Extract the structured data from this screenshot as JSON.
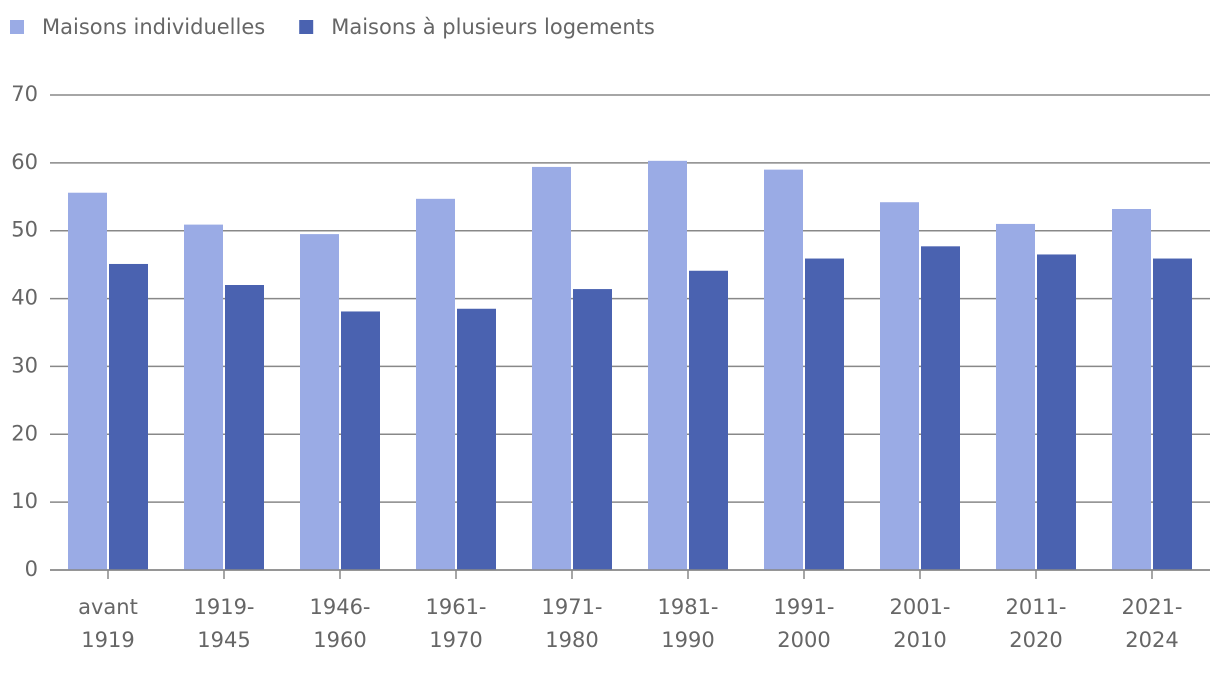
{
  "chart_data": {
    "type": "bar",
    "categories": [
      "avant\n1919",
      "1919-\n1945",
      "1946-\n1960",
      "1961-\n1970",
      "1971-\n1980",
      "1981-\n1990",
      "1991-\n2000",
      "2001-\n2010",
      "2011-\n2020",
      "2021-\n2024"
    ],
    "series": [
      {
        "name": "Maisons individuelles",
        "color": "#9aabe5",
        "values": [
          55.6,
          50.9,
          49.5,
          54.7,
          59.4,
          60.3,
          59.0,
          54.2,
          51.0,
          53.2
        ]
      },
      {
        "name": "Maisons à plusieurs logements",
        "color": "#4a62b0",
        "values": [
          45.1,
          42.0,
          38.1,
          38.5,
          41.4,
          44.1,
          45.9,
          47.7,
          46.5,
          45.9
        ]
      }
    ],
    "ylim": [
      0,
      70
    ],
    "yticks": [
      0,
      10,
      20,
      30,
      40,
      50,
      60,
      70
    ],
    "grid": true
  }
}
